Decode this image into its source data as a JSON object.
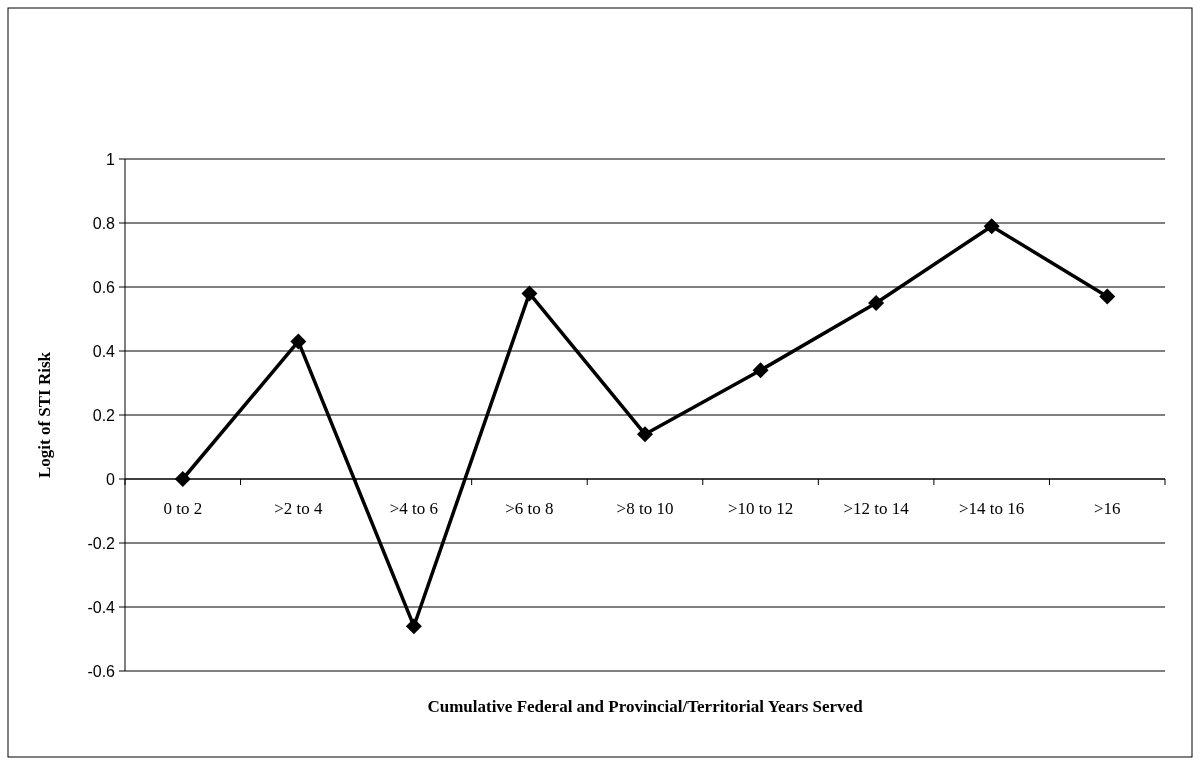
{
  "chart_data": {
    "type": "line",
    "xlabel": "Cumulative Federal and Provincial/Territorial Years Served",
    "ylabel": "Logit of STI Risk",
    "categories": [
      "0 to 2",
      ">2 to 4",
      ">4 to 6",
      ">6 to 8",
      ">8 to 10",
      ">10 to 12",
      ">12 to 14",
      ">14 to 16",
      ">16"
    ],
    "series": [
      {
        "color": "#000000",
        "values": [
          0,
          0.43,
          -0.46,
          0.58,
          0.14,
          0.34,
          0.55,
          0.79,
          0.57
        ]
      }
    ],
    "ylim": [
      -0.6,
      1
    ],
    "yticks": [
      -0.6,
      -0.4,
      -0.2,
      0,
      0.2,
      0.4,
      0.6,
      0.8,
      1
    ],
    "grid": "y",
    "marker": "diamond",
    "line_style": "solid"
  }
}
